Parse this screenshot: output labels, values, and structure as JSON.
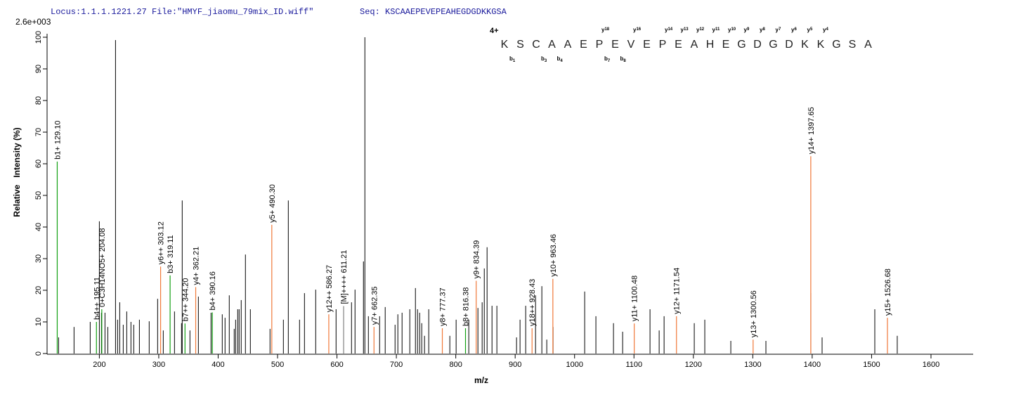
{
  "header": {
    "locus": "Locus:1.1.1.1221.27 File:\"HMYF_jiaomu_79mix_ID.wiff\"",
    "seq": "Seq: KSCAAEPEVEPEAHEGDGDKKGSA"
  },
  "chart_data": {
    "type": "spectrum",
    "scale_label": "2.6e+003",
    "xlabel": "m/z",
    "ylabel": "Relative   Intensity (%)",
    "xlim": [
      112,
      1671
    ],
    "ylim": [
      0,
      100
    ],
    "xticks": [
      200,
      300,
      400,
      500,
      600,
      700,
      800,
      900,
      1000,
      1100,
      1200,
      1300,
      1400,
      1500,
      1600
    ],
    "yticks": [
      0,
      10,
      20,
      30,
      40,
      50,
      60,
      70,
      80,
      90,
      100
    ],
    "peaks": {
      "color": "#000000",
      "x": [
        131.4,
        157.4,
        184.6,
        200.0,
        203.5,
        209.5,
        214.2,
        227.2,
        230.7,
        234.3,
        240.2,
        246.1,
        253.2,
        257.9,
        267.4,
        283.9,
        298.1,
        307.6,
        326.5,
        338.3,
        339.5,
        352.5,
        366.7,
        388.0,
        406.9,
        411.6,
        418.7,
        427.0,
        429.4,
        432.9,
        435.3,
        438.8,
        445.9,
        454.2,
        487.3,
        509.8,
        518.1,
        537.0,
        545.3,
        564.2,
        598.5,
        624.5,
        630.4,
        644.6,
        647.0,
        652.9,
        671.8,
        681.2,
        697.8,
        702.5,
        709.6,
        722.6,
        732.1,
        735.6,
        739.2,
        742.7,
        747.4,
        754.5,
        790.0,
        800.6,
        821.9,
        837.3,
        844.4,
        848.0,
        852.7,
        861.0,
        869.2,
        902.3,
        908.2,
        917.7,
        934.3,
        944.9,
        953.2,
        963.8,
        1017.0,
        1035.9,
        1065.5,
        1080.9,
        1127.0,
        1142.4,
        1150.7,
        1201.5,
        1219.2,
        1263.0,
        1322.1,
        1397.8,
        1416.7,
        1505.4,
        1543.2
      ],
      "values": [
        5.1,
        8.4,
        10.0,
        41.8,
        12.9,
        12.9,
        8.4,
        99.1,
        10.7,
        16.2,
        9.1,
        13.3,
        10.0,
        9.1,
        10.7,
        10.2,
        17.3,
        7.3,
        13.3,
        9.6,
        48.4,
        7.3,
        18.0,
        12.9,
        12.4,
        11.3,
        18.4,
        7.8,
        10.7,
        14.0,
        14.0,
        16.9,
        31.3,
        14.0,
        7.8,
        10.7,
        48.4,
        10.7,
        19.1,
        20.2,
        14.0,
        16.2,
        20.2,
        29.1,
        100,
        11.8,
        11.8,
        14.7,
        9.1,
        12.4,
        12.9,
        14.0,
        20.7,
        14.0,
        12.9,
        9.6,
        5.6,
        14.0,
        5.6,
        10.7,
        10.7,
        14.4,
        16.2,
        26.9,
        33.6,
        15.1,
        15.1,
        5.1,
        10.7,
        15.1,
        18.4,
        21.3,
        4.4,
        8.4,
        19.6,
        11.8,
        9.6,
        6.9,
        14.0,
        7.3,
        11.8,
        9.6,
        10.7,
        4.0,
        4.0,
        19.1,
        5.1,
        14.0,
        5.6
      ]
    },
    "annotated_peaks": [
      {
        "x": 129.1,
        "value": 60.7,
        "label": "b1+ 129.10",
        "color": "#12a012",
        "label_color": "#2dbb2d"
      },
      {
        "x": 195.11,
        "value": 10.0,
        "label": "b4++ 195.11",
        "color": "#12a012",
        "label_color": "#2dbb2d"
      },
      {
        "x": 204.08,
        "value": 14.0,
        "label": "0+C3H14NO5+ 204.08",
        "color": "#12a012",
        "label_color": "#2dd42d"
      },
      {
        "x": 303.12,
        "value": 27.5,
        "label": "y6++ 303.12",
        "color": "#f07838",
        "label_color": "#f07838"
      },
      {
        "x": 319.11,
        "value": 24.7,
        "label": "b3+ 319.11",
        "color": "#12a012",
        "label_color": "#1c9c1c"
      },
      {
        "x": 344.2,
        "value": 9.5,
        "label": "b7++ 344.20",
        "color": "#12a012",
        "label_color": "#1c9c1c"
      },
      {
        "x": 362.21,
        "value": 21.0,
        "label": "y4+ 362.21",
        "color": "#f07838",
        "label_color": "#f07838"
      },
      {
        "x": 390.16,
        "value": 13.0,
        "label": "b4+ 390.16",
        "color": "#12a012",
        "label_color": "#1c9c1c"
      },
      {
        "x": 490.3,
        "value": 40.7,
        "label": "y5+ 490.30",
        "color": "#f07838",
        "label_color": "#f07838"
      },
      {
        "x": 586.27,
        "value": 12.4,
        "label": "y12++ 586.27",
        "color": "#f07838",
        "label_color": "#f07838"
      },
      {
        "x": 611.21,
        "value": 15.0,
        "label": "[M]++++ 611.21",
        "color": "#808080",
        "label_color": "#707070"
      },
      {
        "x": 662.35,
        "value": 8.4,
        "label": "y7+ 662.35",
        "color": "#f07838",
        "label_color": "#f07838"
      },
      {
        "x": 777.37,
        "value": 8.0,
        "label": "y8+ 777.37",
        "color": "#f07838",
        "label_color": "#f07838"
      },
      {
        "x": 816.38,
        "value": 8.0,
        "label": "b8+ 816.38",
        "color": "#12a012",
        "label_color": "#1c9c1c"
      },
      {
        "x": 834.39,
        "value": 23.0,
        "label": "y9+ 834.39",
        "color": "#f07838",
        "label_color": "#f07838"
      },
      {
        "x": 928.43,
        "value": 8.0,
        "label": "y18++ 928.43",
        "color": "#f07838",
        "label_color": "#f07838"
      },
      {
        "x": 963.46,
        "value": 23.6,
        "label": "y10+ 963.46",
        "color": "#f07838",
        "label_color": "#f07838"
      },
      {
        "x": 1100.48,
        "value": 9.5,
        "label": "y11+ 1100.48",
        "color": "#f07838",
        "label_color": "#f07838"
      },
      {
        "x": 1171.54,
        "value": 11.8,
        "label": "y12+ 1171.54",
        "color": "#f07838",
        "label_color": "#f07838"
      },
      {
        "x": 1300.56,
        "value": 4.4,
        "label": "y13+ 1300.56",
        "color": "#f07838",
        "label_color": "#f07838"
      },
      {
        "x": 1397.65,
        "value": 62.4,
        "label": "y14+ 1397.65",
        "color": "#f07838",
        "label_color": "#f07838"
      },
      {
        "x": 1526.68,
        "value": 11.3,
        "label": "y15+ 1526.68",
        "color": "#f07838",
        "label_color": "#f07838"
      }
    ],
    "charge": "4+",
    "charge_color": "#1a1ae0",
    "y_ion_color": "#f07838",
    "b_ion_color": "#1c8c1c",
    "residues": [
      {
        "aa": "K",
        "b": {
          "ion": "b",
          "n": "1"
        }
      },
      {
        "aa": "S"
      },
      {
        "aa": "C",
        "b": {
          "ion": "b",
          "n": "3"
        }
      },
      {
        "aa": "A",
        "b": {
          "ion": "b",
          "n": "4"
        }
      },
      {
        "aa": "A"
      },
      {
        "aa": "E"
      },
      {
        "aa": "P",
        "y": {
          "ion": "y",
          "n": "18"
        },
        "b": {
          "ion": "b",
          "n": "7"
        }
      },
      {
        "aa": "E",
        "b": {
          "ion": "b",
          "n": "8"
        }
      },
      {
        "aa": "V",
        "y": {
          "ion": "y",
          "n": "16"
        }
      },
      {
        "aa": "E"
      },
      {
        "aa": "P",
        "y": {
          "ion": "y",
          "n": "14"
        }
      },
      {
        "aa": "E",
        "y": {
          "ion": "y",
          "n": "13"
        }
      },
      {
        "aa": "A",
        "y": {
          "ion": "y",
          "n": "12"
        }
      },
      {
        "aa": "H",
        "y": {
          "ion": "y",
          "n": "11"
        }
      },
      {
        "aa": "E",
        "y": {
          "ion": "y",
          "n": "10"
        }
      },
      {
        "aa": "G",
        "y": {
          "ion": "y",
          "n": "9"
        }
      },
      {
        "aa": "D",
        "y": {
          "ion": "y",
          "n": "8"
        }
      },
      {
        "aa": "G",
        "y": {
          "ion": "y",
          "n": "7"
        }
      },
      {
        "aa": "D",
        "y": {
          "ion": "y",
          "n": "6"
        }
      },
      {
        "aa": "K",
        "y": {
          "ion": "y",
          "n": "5"
        }
      },
      {
        "aa": "K",
        "y": {
          "ion": "y",
          "n": "4"
        }
      },
      {
        "aa": "G"
      },
      {
        "aa": "S"
      },
      {
        "aa": "A"
      }
    ]
  }
}
